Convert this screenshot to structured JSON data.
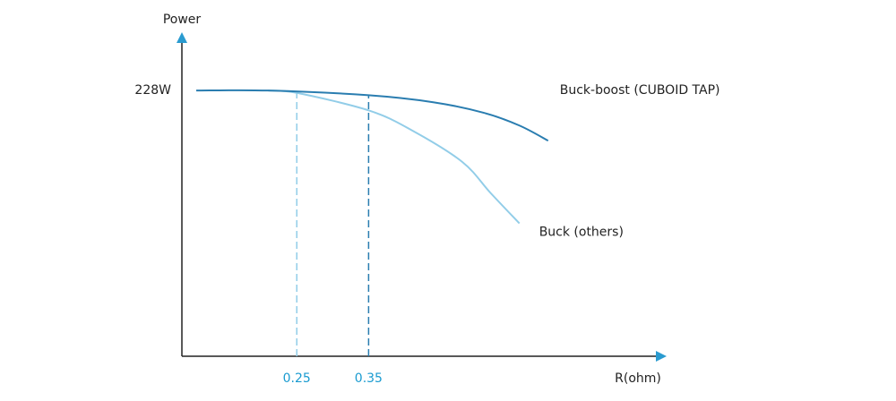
{
  "chart_data": {
    "type": "line",
    "x_label": "R(ohm)",
    "y_label": "Power",
    "xlim": [
      0.09,
      0.76
    ],
    "ylim": [
      0,
      275
    ],
    "xticks": [
      0.25,
      0.35
    ],
    "yticks": [
      {
        "value": 228,
        "label": "228W"
      }
    ],
    "series": [
      {
        "name": "Buck-boost (CUBOID TAP)",
        "color": "#2a7db0",
        "x": [
          0.11,
          0.21,
          0.35,
          0.44,
          0.51,
          0.56,
          0.6
        ],
        "values": [
          228,
          228,
          224,
          218,
          209,
          198,
          185
        ]
      },
      {
        "name": "Buck (others)",
        "color": "#92cde8",
        "x": [
          0.21,
          0.25,
          0.35,
          0.41,
          0.48,
          0.52,
          0.56
        ],
        "values": [
          228,
          226,
          211,
          194,
          167,
          140,
          114
        ]
      }
    ]
  }
}
